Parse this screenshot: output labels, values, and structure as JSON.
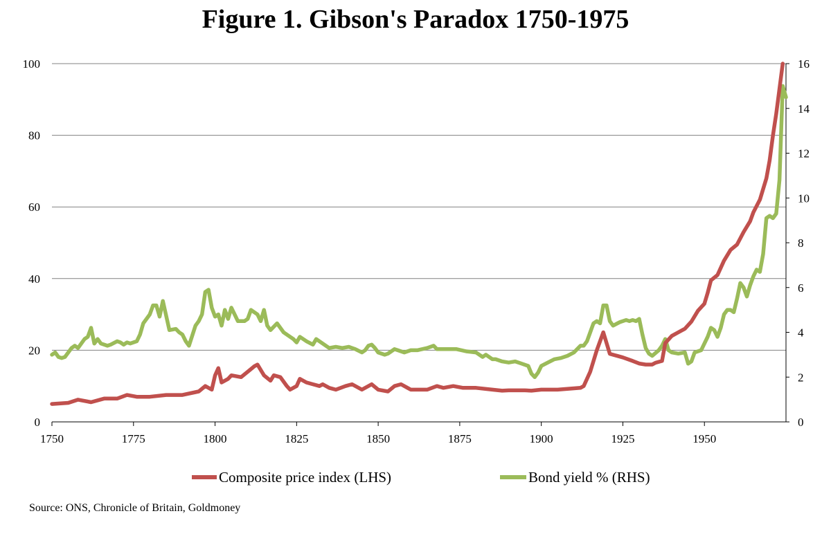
{
  "title": "Figure 1. Gibson's Paradox 1750-1975",
  "source": "Source: ONS, Chronicle of Britain, Goldmoney",
  "colors": {
    "price": "#c0504d",
    "yield": "#9bbb59",
    "grid": "#808080",
    "axis": "#000000"
  },
  "chart_data": {
    "type": "line",
    "title": "Figure 1. Gibson's Paradox 1750-1975",
    "xlim": [
      1750,
      1975
    ],
    "x_ticks": [
      1750,
      1775,
      1800,
      1825,
      1850,
      1875,
      1900,
      1925,
      1950
    ],
    "y_left": {
      "range": [
        0,
        100
      ],
      "ticks": [
        0,
        20,
        40,
        60,
        80,
        100
      ]
    },
    "y_right": {
      "range": [
        0,
        16
      ],
      "ticks": [
        0,
        2,
        4,
        6,
        8,
        10,
        12,
        14,
        16
      ]
    },
    "grid": "horizontal",
    "legend_position": "bottom",
    "series": [
      {
        "name": "Composite price index (LHS)",
        "axis": "left",
        "color": "#c0504d",
        "points": [
          [
            1750,
            5
          ],
          [
            1755,
            5.3
          ],
          [
            1758,
            6.2
          ],
          [
            1762,
            5.5
          ],
          [
            1766,
            6.5
          ],
          [
            1770,
            6.5
          ],
          [
            1773,
            7.5
          ],
          [
            1776,
            7
          ],
          [
            1780,
            7
          ],
          [
            1785,
            7.5
          ],
          [
            1790,
            7.5
          ],
          [
            1795,
            8.5
          ],
          [
            1797,
            10
          ],
          [
            1799,
            9
          ],
          [
            1800,
            13
          ],
          [
            1801,
            15
          ],
          [
            1802,
            11
          ],
          [
            1804,
            12
          ],
          [
            1805,
            13
          ],
          [
            1808,
            12.5
          ],
          [
            1810,
            14
          ],
          [
            1812,
            15.5
          ],
          [
            1813,
            16
          ],
          [
            1815,
            13
          ],
          [
            1817,
            11.5
          ],
          [
            1818,
            13
          ],
          [
            1820,
            12.5
          ],
          [
            1822,
            10
          ],
          [
            1823,
            9
          ],
          [
            1825,
            10
          ],
          [
            1826,
            12
          ],
          [
            1828,
            11
          ],
          [
            1830,
            10.5
          ],
          [
            1832,
            10
          ],
          [
            1833,
            10.5
          ],
          [
            1835,
            9.5
          ],
          [
            1837,
            9
          ],
          [
            1840,
            10
          ],
          [
            1842,
            10.5
          ],
          [
            1845,
            9
          ],
          [
            1848,
            10.5
          ],
          [
            1850,
            9
          ],
          [
            1853,
            8.5
          ],
          [
            1855,
            10
          ],
          [
            1857,
            10.5
          ],
          [
            1859,
            9.5
          ],
          [
            1860,
            9
          ],
          [
            1865,
            9
          ],
          [
            1868,
            10
          ],
          [
            1870,
            9.5
          ],
          [
            1873,
            10
          ],
          [
            1876,
            9.5
          ],
          [
            1880,
            9.5
          ],
          [
            1885,
            9
          ],
          [
            1888,
            8.7
          ],
          [
            1890,
            8.8
          ],
          [
            1895,
            8.8
          ],
          [
            1897,
            8.7
          ],
          [
            1900,
            9
          ],
          [
            1905,
            9
          ],
          [
            1908,
            9.2
          ],
          [
            1912,
            9.5
          ],
          [
            1913,
            10
          ],
          [
            1915,
            14
          ],
          [
            1917,
            20
          ],
          [
            1919,
            25
          ],
          [
            1920,
            22
          ],
          [
            1921,
            19
          ],
          [
            1923,
            18.5
          ],
          [
            1925,
            18
          ],
          [
            1928,
            17
          ],
          [
            1930,
            16.3
          ],
          [
            1932,
            16
          ],
          [
            1934,
            16
          ],
          [
            1935,
            16.5
          ],
          [
            1937,
            17
          ],
          [
            1938,
            22
          ],
          [
            1940,
            24
          ],
          [
            1942,
            25
          ],
          [
            1944,
            26
          ],
          [
            1946,
            28
          ],
          [
            1948,
            31
          ],
          [
            1950,
            33
          ],
          [
            1951,
            36
          ],
          [
            1952,
            39.5
          ],
          [
            1954,
            41
          ],
          [
            1956,
            45
          ],
          [
            1958,
            48
          ],
          [
            1960,
            49.5
          ],
          [
            1962,
            53
          ],
          [
            1964,
            56
          ],
          [
            1965,
            58.5
          ],
          [
            1967,
            62
          ],
          [
            1969,
            68
          ],
          [
            1970,
            73
          ],
          [
            1971,
            80
          ],
          [
            1972,
            86
          ],
          [
            1973,
            93
          ],
          [
            1974,
            100
          ]
        ]
      },
      {
        "name": "Bond yield % (RHS)",
        "axis": "right",
        "color": "#9bbb59",
        "points": [
          [
            1750,
            3
          ],
          [
            1751,
            3.1
          ],
          [
            1752,
            2.9
          ],
          [
            1753,
            2.85
          ],
          [
            1754,
            2.9
          ],
          [
            1756,
            3.3
          ],
          [
            1757,
            3.4
          ],
          [
            1758,
            3.3
          ],
          [
            1760,
            3.7
          ],
          [
            1761,
            3.8
          ],
          [
            1762,
            4.2
          ],
          [
            1763,
            3.5
          ],
          [
            1764,
            3.7
          ],
          [
            1765,
            3.5
          ],
          [
            1767,
            3.4
          ],
          [
            1768,
            3.45
          ],
          [
            1770,
            3.6
          ],
          [
            1771,
            3.55
          ],
          [
            1772,
            3.45
          ],
          [
            1773,
            3.55
          ],
          [
            1774,
            3.5
          ],
          [
            1776,
            3.6
          ],
          [
            1777,
            3.9
          ],
          [
            1778,
            4.4
          ],
          [
            1780,
            4.8
          ],
          [
            1781,
            5.2
          ],
          [
            1782,
            5.2
          ],
          [
            1783,
            4.7
          ],
          [
            1784,
            5.4
          ],
          [
            1786,
            4.1
          ],
          [
            1788,
            4.15
          ],
          [
            1789,
            4
          ],
          [
            1790,
            3.9
          ],
          [
            1791,
            3.6
          ],
          [
            1792,
            3.4
          ],
          [
            1794,
            4.3
          ],
          [
            1795,
            4.5
          ],
          [
            1796,
            4.8
          ],
          [
            1797,
            5.8
          ],
          [
            1798,
            5.9
          ],
          [
            1799,
            5.1
          ],
          [
            1800,
            4.7
          ],
          [
            1801,
            4.8
          ],
          [
            1802,
            4.3
          ],
          [
            1803,
            5
          ],
          [
            1804,
            4.6
          ],
          [
            1805,
            5.1
          ],
          [
            1806,
            4.8
          ],
          [
            1807,
            4.5
          ],
          [
            1809,
            4.5
          ],
          [
            1810,
            4.6
          ],
          [
            1811,
            5
          ],
          [
            1812,
            4.9
          ],
          [
            1813,
            4.8
          ],
          [
            1814,
            4.5
          ],
          [
            1815,
            5
          ],
          [
            1816,
            4.3
          ],
          [
            1817,
            4.1
          ],
          [
            1819,
            4.4
          ],
          [
            1821,
            4
          ],
          [
            1823,
            3.8
          ],
          [
            1824,
            3.7
          ],
          [
            1825,
            3.55
          ],
          [
            1826,
            3.8
          ],
          [
            1828,
            3.6
          ],
          [
            1830,
            3.45
          ],
          [
            1831,
            3.7
          ],
          [
            1833,
            3.5
          ],
          [
            1835,
            3.3
          ],
          [
            1837,
            3.35
          ],
          [
            1839,
            3.3
          ],
          [
            1841,
            3.35
          ],
          [
            1843,
            3.25
          ],
          [
            1845,
            3.1
          ],
          [
            1846,
            3.2
          ],
          [
            1847,
            3.4
          ],
          [
            1848,
            3.45
          ],
          [
            1849,
            3.3
          ],
          [
            1850,
            3.1
          ],
          [
            1852,
            3
          ],
          [
            1853,
            3.05
          ],
          [
            1855,
            3.25
          ],
          [
            1856,
            3.2
          ],
          [
            1858,
            3.1
          ],
          [
            1860,
            3.2
          ],
          [
            1862,
            3.2
          ],
          [
            1865,
            3.3
          ],
          [
            1867,
            3.4
          ],
          [
            1868,
            3.25
          ],
          [
            1872,
            3.25
          ],
          [
            1874,
            3.25
          ],
          [
            1877,
            3.15
          ],
          [
            1880,
            3.1
          ],
          [
            1882,
            2.9
          ],
          [
            1883,
            3
          ],
          [
            1885,
            2.8
          ],
          [
            1886,
            2.8
          ],
          [
            1888,
            2.7
          ],
          [
            1890,
            2.65
          ],
          [
            1892,
            2.7
          ],
          [
            1894,
            2.6
          ],
          [
            1896,
            2.5
          ],
          [
            1897,
            2.15
          ],
          [
            1898,
            2
          ],
          [
            1899,
            2.2
          ],
          [
            1900,
            2.5
          ],
          [
            1902,
            2.65
          ],
          [
            1904,
            2.8
          ],
          [
            1906,
            2.85
          ],
          [
            1908,
            2.95
          ],
          [
            1910,
            3.1
          ],
          [
            1912,
            3.4
          ],
          [
            1913,
            3.4
          ],
          [
            1914,
            3.6
          ],
          [
            1915,
            4
          ],
          [
            1916,
            4.4
          ],
          [
            1917,
            4.5
          ],
          [
            1918,
            4.4
          ],
          [
            1919,
            5.2
          ],
          [
            1920,
            5.2
          ],
          [
            1921,
            4.5
          ],
          [
            1922,
            4.3
          ],
          [
            1924,
            4.45
          ],
          [
            1926,
            4.55
          ],
          [
            1927,
            4.5
          ],
          [
            1928,
            4.55
          ],
          [
            1929,
            4.5
          ],
          [
            1930,
            4.6
          ],
          [
            1931,
            3.9
          ],
          [
            1932,
            3.3
          ],
          [
            1933,
            3.05
          ],
          [
            1934,
            2.95
          ],
          [
            1936,
            3.2
          ],
          [
            1937,
            3.4
          ],
          [
            1938,
            3.7
          ],
          [
            1939,
            3.2
          ],
          [
            1940,
            3.1
          ],
          [
            1942,
            3.05
          ],
          [
            1944,
            3.1
          ],
          [
            1945,
            2.6
          ],
          [
            1946,
            2.7
          ],
          [
            1947,
            3.1
          ],
          [
            1949,
            3.2
          ],
          [
            1950,
            3.5
          ],
          [
            1951,
            3.8
          ],
          [
            1952,
            4.2
          ],
          [
            1953,
            4.1
          ],
          [
            1954,
            3.8
          ],
          [
            1955,
            4.2
          ],
          [
            1956,
            4.8
          ],
          [
            1957,
            5
          ],
          [
            1958,
            5
          ],
          [
            1959,
            4.9
          ],
          [
            1960,
            5.5
          ],
          [
            1961,
            6.2
          ],
          [
            1962,
            6
          ],
          [
            1963,
            5.6
          ],
          [
            1964,
            6.1
          ],
          [
            1965,
            6.5
          ],
          [
            1966,
            6.8
          ],
          [
            1967,
            6.7
          ],
          [
            1968,
            7.5
          ],
          [
            1969,
            9.1
          ],
          [
            1970,
            9.2
          ],
          [
            1971,
            9.1
          ],
          [
            1972,
            9.3
          ],
          [
            1973,
            10.8
          ],
          [
            1974,
            15
          ],
          [
            1975,
            14.5
          ]
        ]
      }
    ]
  }
}
